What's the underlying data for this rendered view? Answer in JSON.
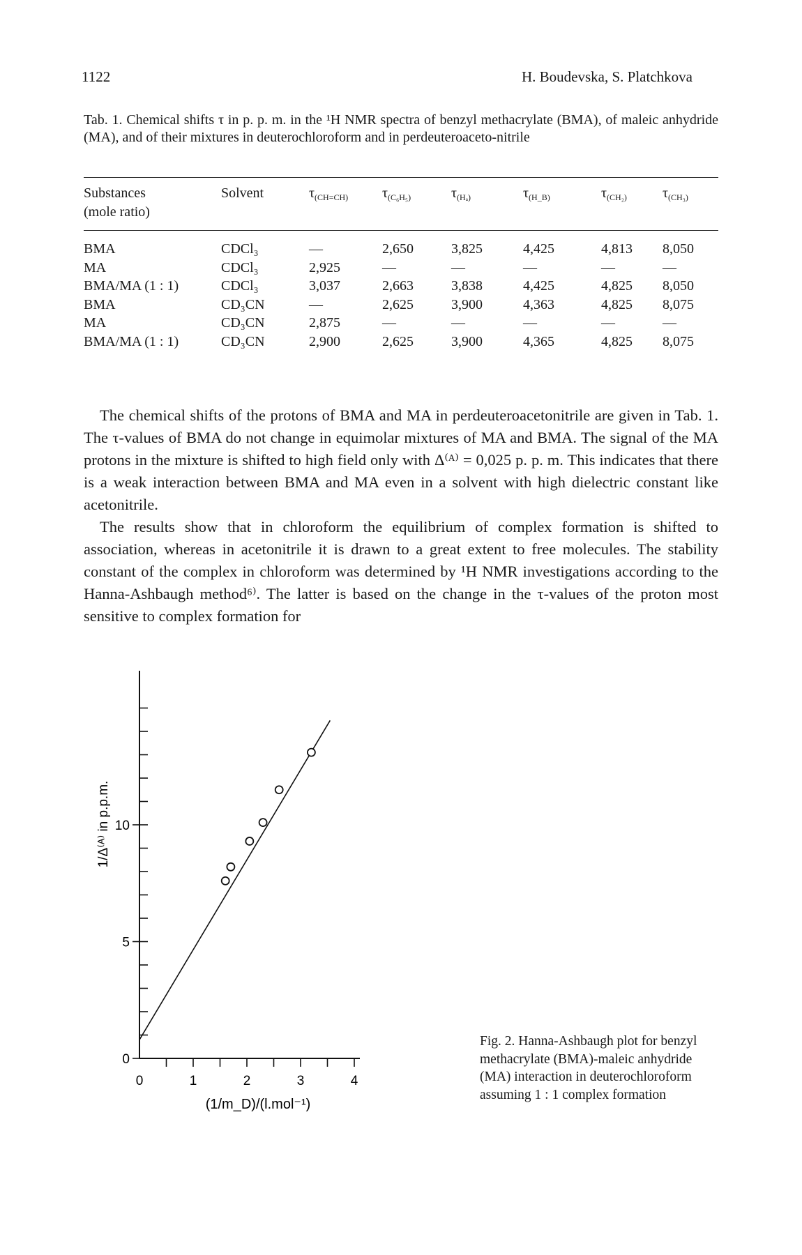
{
  "header": {
    "page_number": "1122",
    "authors": "H. Boudevska, S. Platchkova"
  },
  "table_caption": "Tab. 1.  Chemical shifts τ in p. p. m. in the ¹H NMR spectra of benzyl methacrylate (BMA), of maleic anhydride (MA), and of their mixtures in deuterochloroform and in perdeuteroaceto-nitrile",
  "table": {
    "headers": {
      "substances": "Substances",
      "mole_ratio": "(mole ratio)",
      "solvent": "Solvent",
      "tau": "τ",
      "ch_ch": "(CH=CH)",
      "c6h5": "(C₆H₅)",
      "ha": "(Hₐ)",
      "hb": "(H_B)",
      "ch2": "(CH₂)",
      "ch3": "(CH₃)"
    },
    "rows": [
      [
        "BMA",
        "CDCl₃",
        "—",
        "2,650",
        "3,825",
        "4,425",
        "4,813",
        "8,050"
      ],
      [
        "MA",
        "CDCl₃",
        "2,925",
        "—",
        "—",
        "—",
        "—",
        "—"
      ],
      [
        "BMA/MA (1 : 1)",
        "CDCl₃",
        "3,037",
        "2,663",
        "3,838",
        "4,425",
        "4,825",
        "8,050"
      ],
      [
        "BMA",
        "CD₃CN",
        "—",
        "2,625",
        "3,900",
        "4,363",
        "4,825",
        "8,075"
      ],
      [
        "MA",
        "CD₃CN",
        "2,875",
        "—",
        "—",
        "—",
        "—",
        "—"
      ],
      [
        "BMA/MA (1 : 1)",
        "CD₃CN",
        "2,900",
        "2,625",
        "3,900",
        "4,365",
        "4,825",
        "8,075"
      ]
    ]
  },
  "paragraphs": [
    "The chemical shifts of the protons of BMA and MA in perdeuteroacetonitrile are given in Tab. 1. The τ-values of BMA do not change in equimolar mixtures of MA and BMA. The signal of the MA protons in the mixture is shifted to high field only with Δ⁽ᴬ⁾ = 0,025 p. p. m. This indicates that there is a weak interaction between BMA and MA even in a solvent with high dielectric constant like acetonitrile.",
    "The results show that in chloroform the equilibrium of complex formation is shifted to association, whereas in acetonitrile it is drawn to a great extent to free molecules. The stability constant of the complex in chloroform was determined by ¹H NMR investigations according to the Hanna-Ashbaugh method⁶⁾. The latter is based on the change in the τ-values of the proton most sensitive to complex formation for"
  ],
  "figure": {
    "caption": "Fig. 2.  Hanna-Ashbaugh plot for benzyl methacrylate (BMA)-maleic anhydride (MA) interaction in deuterochloroform assuming 1 : 1 complex formation"
  },
  "chart_data": {
    "type": "scatter",
    "xlabel": "(1/m_D)/(l.mol⁻¹)",
    "ylabel": "1/Δ⁽ᴬ⁾ in p.p.m.",
    "x_ticks": [
      0,
      1,
      2,
      3,
      4
    ],
    "y_ticks": [
      0,
      5,
      10
    ],
    "xlim": [
      0,
      4.3
    ],
    "ylim": [
      0,
      15
    ],
    "points": [
      {
        "x": 1.6,
        "y": 7.6
      },
      {
        "x": 1.7,
        "y": 8.2
      },
      {
        "x": 2.05,
        "y": 9.3
      },
      {
        "x": 2.3,
        "y": 10.1
      },
      {
        "x": 2.6,
        "y": 11.5
      },
      {
        "x": 3.2,
        "y": 13.1
      }
    ],
    "fit_line": {
      "intercept": 0.8,
      "slope": 3.85
    },
    "grid": false
  }
}
